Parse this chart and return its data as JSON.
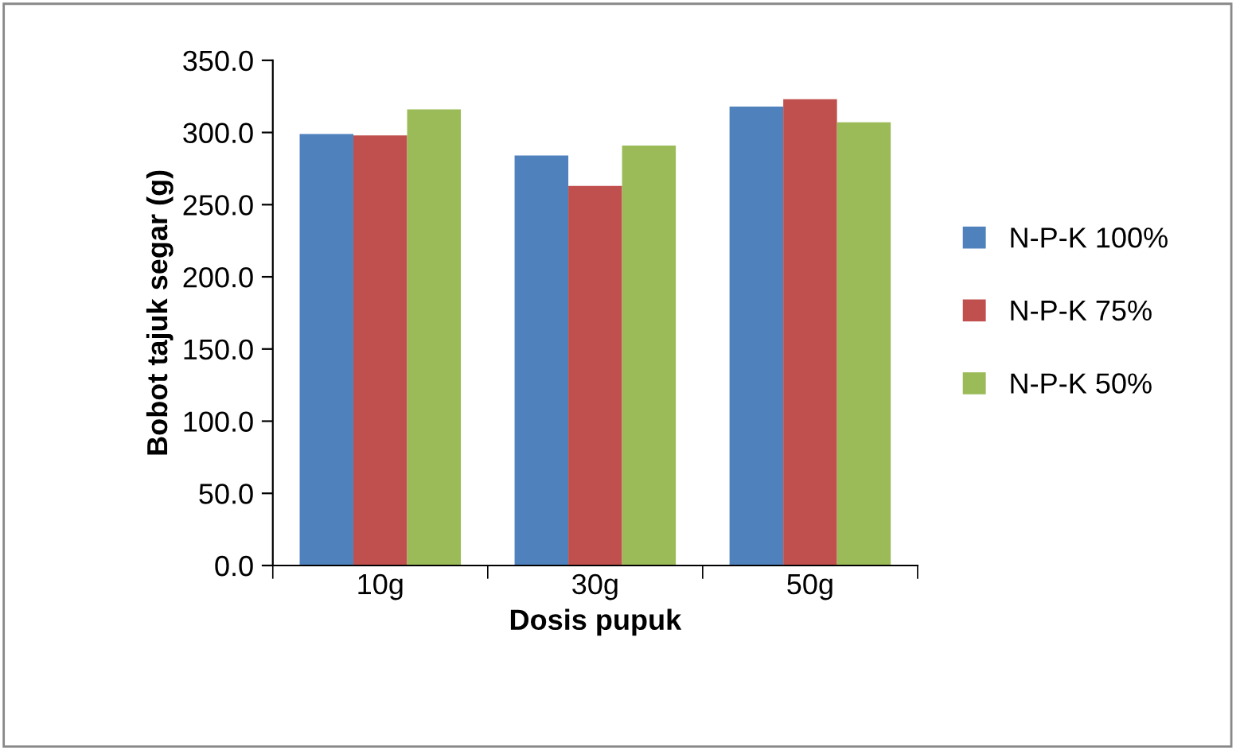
{
  "chart_data": {
    "type": "bar",
    "xlabel": "Dosis pupuk",
    "ylabel": "Bobot tajuk segar (g)",
    "categories": [
      "10g",
      "30g",
      "50g"
    ],
    "series": [
      {
        "name": "N-P-K 100%",
        "color": "#4f81bd",
        "values": [
          299,
          284,
          318
        ]
      },
      {
        "name": "N-P-K 75%",
        "color": "#c0504d",
        "values": [
          298,
          263,
          323
        ]
      },
      {
        "name": "N-P-K 50%",
        "color": "#9bbb59",
        "values": [
          316,
          291,
          307
        ]
      }
    ],
    "ylim": [
      0,
      350
    ],
    "yticks": [
      {
        "value": 0,
        "label": "0.0"
      },
      {
        "value": 50,
        "label": "50.0"
      },
      {
        "value": 100,
        "label": "100.0"
      },
      {
        "value": 150,
        "label": "150.0"
      },
      {
        "value": 200,
        "label": "200.0"
      },
      {
        "value": 250,
        "label": "250.0"
      },
      {
        "value": 300,
        "label": "300.0"
      },
      {
        "value": 350,
        "label": "350.0"
      }
    ],
    "grid": false,
    "legend": "right"
  }
}
